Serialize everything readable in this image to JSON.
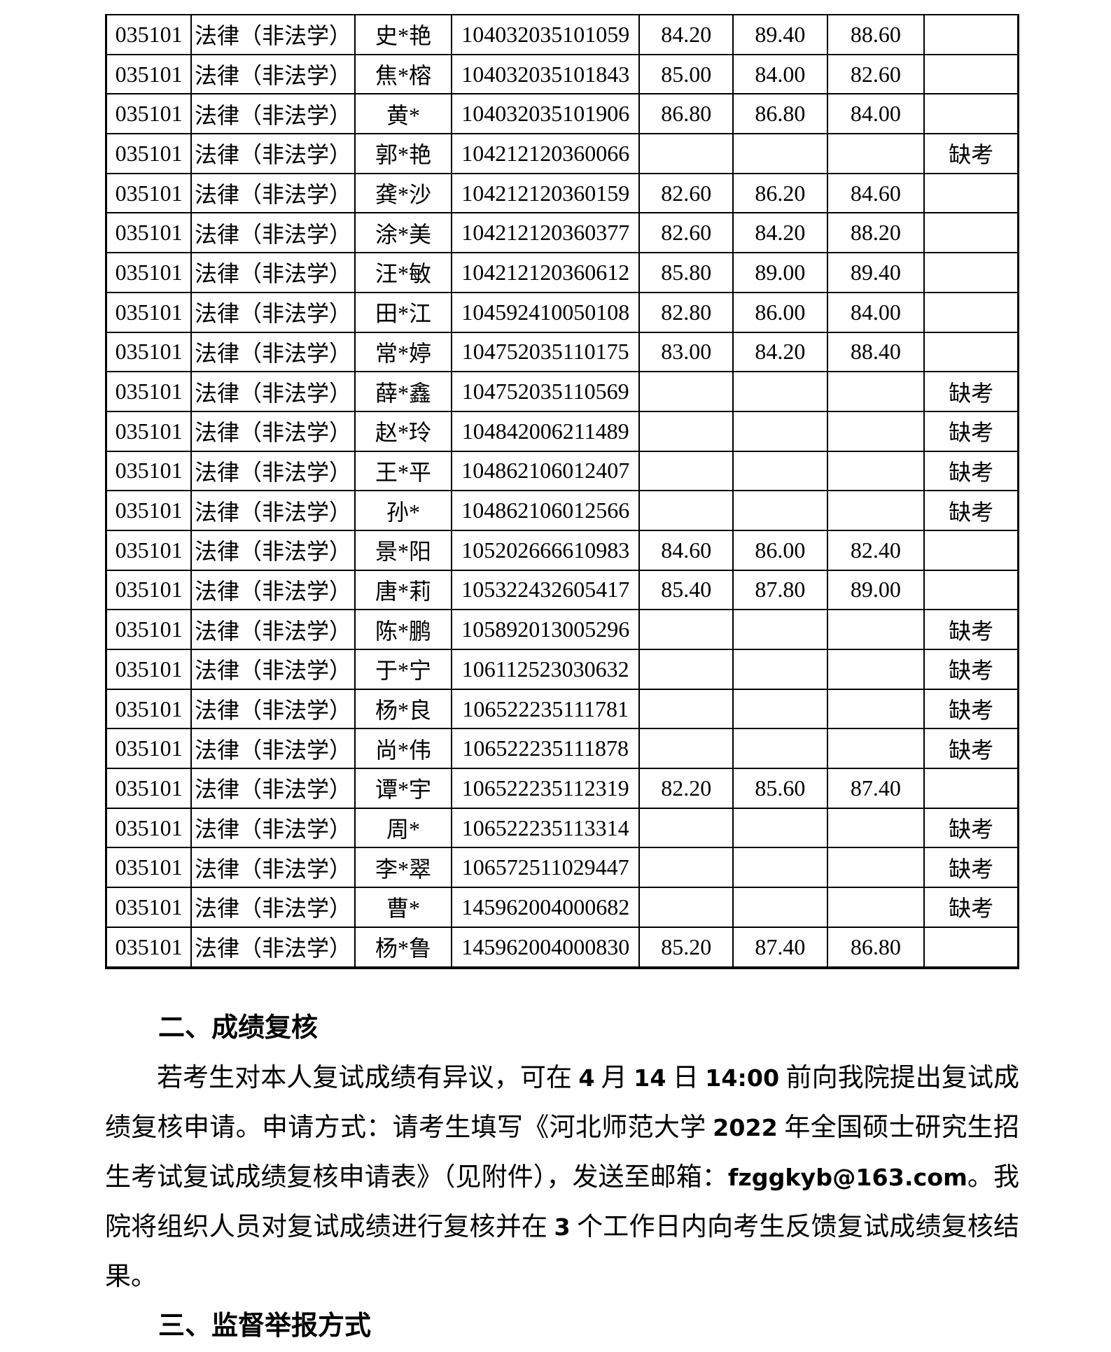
{
  "colors": {
    "page_background": "#ffffff",
    "text": "#000000",
    "table_border": "#000000"
  },
  "table": {
    "rows": [
      {
        "code": "035101",
        "major": "法律（非法学）",
        "name": "史*艳",
        "candidate_id": "104032035101059",
        "score1": "84.20",
        "score2": "89.40",
        "score3": "88.60",
        "remark": ""
      },
      {
        "code": "035101",
        "major": "法律（非法学）",
        "name": "焦*榕",
        "candidate_id": "104032035101843",
        "score1": "85.00",
        "score2": "84.00",
        "score3": "82.60",
        "remark": ""
      },
      {
        "code": "035101",
        "major": "法律（非法学）",
        "name": "黄*",
        "candidate_id": "104032035101906",
        "score1": "86.80",
        "score2": "86.80",
        "score3": "84.00",
        "remark": ""
      },
      {
        "code": "035101",
        "major": "法律（非法学）",
        "name": "郭*艳",
        "candidate_id": "104212120360066",
        "score1": "",
        "score2": "",
        "score3": "",
        "remark": "缺考"
      },
      {
        "code": "035101",
        "major": "法律（非法学）",
        "name": "龚*沙",
        "candidate_id": "104212120360159",
        "score1": "82.60",
        "score2": "86.20",
        "score3": "84.60",
        "remark": ""
      },
      {
        "code": "035101",
        "major": "法律（非法学）",
        "name": "涂*美",
        "candidate_id": "104212120360377",
        "score1": "82.60",
        "score2": "84.20",
        "score3": "88.20",
        "remark": ""
      },
      {
        "code": "035101",
        "major": "法律（非法学）",
        "name": "汪*敏",
        "candidate_id": "104212120360612",
        "score1": "85.80",
        "score2": "89.00",
        "score3": "89.40",
        "remark": ""
      },
      {
        "code": "035101",
        "major": "法律（非法学）",
        "name": "田*江",
        "candidate_id": "104592410050108",
        "score1": "82.80",
        "score2": "86.00",
        "score3": "84.00",
        "remark": ""
      },
      {
        "code": "035101",
        "major": "法律（非法学）",
        "name": "常*婷",
        "candidate_id": "104752035110175",
        "score1": "83.00",
        "score2": "84.20",
        "score3": "88.40",
        "remark": ""
      },
      {
        "code": "035101",
        "major": "法律（非法学）",
        "name": "薛*鑫",
        "candidate_id": "104752035110569",
        "score1": "",
        "score2": "",
        "score3": "",
        "remark": "缺考"
      },
      {
        "code": "035101",
        "major": "法律（非法学）",
        "name": "赵*玲",
        "candidate_id": "104842006211489",
        "score1": "",
        "score2": "",
        "score3": "",
        "remark": "缺考"
      },
      {
        "code": "035101",
        "major": "法律（非法学）",
        "name": "王*平",
        "candidate_id": "104862106012407",
        "score1": "",
        "score2": "",
        "score3": "",
        "remark": "缺考"
      },
      {
        "code": "035101",
        "major": "法律（非法学）",
        "name": "孙*",
        "candidate_id": "104862106012566",
        "score1": "",
        "score2": "",
        "score3": "",
        "remark": "缺考"
      },
      {
        "code": "035101",
        "major": "法律（非法学）",
        "name": "景*阳",
        "candidate_id": "105202666610983",
        "score1": "84.60",
        "score2": "86.00",
        "score3": "82.40",
        "remark": ""
      },
      {
        "code": "035101",
        "major": "法律（非法学）",
        "name": "唐*莉",
        "candidate_id": "105322432605417",
        "score1": "85.40",
        "score2": "87.80",
        "score3": "89.00",
        "remark": ""
      },
      {
        "code": "035101",
        "major": "法律（非法学）",
        "name": "陈*鹏",
        "candidate_id": "105892013005296",
        "score1": "",
        "score2": "",
        "score3": "",
        "remark": "缺考"
      },
      {
        "code": "035101",
        "major": "法律（非法学）",
        "name": "于*宁",
        "candidate_id": "106112523030632",
        "score1": "",
        "score2": "",
        "score3": "",
        "remark": "缺考"
      },
      {
        "code": "035101",
        "major": "法律（非法学）",
        "name": "杨*良",
        "candidate_id": "106522235111781",
        "score1": "",
        "score2": "",
        "score3": "",
        "remark": "缺考"
      },
      {
        "code": "035101",
        "major": "法律（非法学）",
        "name": "尚*伟",
        "candidate_id": "106522235111878",
        "score1": "",
        "score2": "",
        "score3": "",
        "remark": "缺考"
      },
      {
        "code": "035101",
        "major": "法律（非法学）",
        "name": "谭*宇",
        "candidate_id": "106522235112319",
        "score1": "82.20",
        "score2": "85.60",
        "score3": "87.40",
        "remark": ""
      },
      {
        "code": "035101",
        "major": "法律（非法学）",
        "name": "周*",
        "candidate_id": "106522235113314",
        "score1": "",
        "score2": "",
        "score3": "",
        "remark": "缺考"
      },
      {
        "code": "035101",
        "major": "法律（非法学）",
        "name": "李*翠",
        "candidate_id": "106572511029447",
        "score1": "",
        "score2": "",
        "score3": "",
        "remark": "缺考"
      },
      {
        "code": "035101",
        "major": "法律（非法学）",
        "name": "曹*",
        "candidate_id": "145962004000682",
        "score1": "",
        "score2": "",
        "score3": "",
        "remark": "缺考"
      },
      {
        "code": "035101",
        "major": "法律（非法学）",
        "name": "杨*鲁",
        "candidate_id": "145962004000830",
        "score1": "85.20",
        "score2": "87.40",
        "score3": "86.80",
        "remark": ""
      }
    ]
  },
  "sections": {
    "review": {
      "heading": "二、成绩复核",
      "paragraph_segments": [
        {
          "kind": "cjk",
          "text": "若考生对本人复试成绩有异议，可在 "
        },
        {
          "kind": "latin",
          "text": "4"
        },
        {
          "kind": "cjk",
          "text": " 月 "
        },
        {
          "kind": "latin",
          "text": "14"
        },
        {
          "kind": "cjk",
          "text": " 日 "
        },
        {
          "kind": "latin",
          "text": "14:00"
        },
        {
          "kind": "cjk",
          "text": " 前向我院提出复试成绩复核申请。申请方式：请考生填写《河北师范大学 "
        },
        {
          "kind": "latin",
          "text": "2022"
        },
        {
          "kind": "cjk",
          "text": " 年全国硕士研究生招生考试复试成绩复核申请表》（见附件），发送至邮箱："
        },
        {
          "kind": "latin",
          "text": "fzggkyb@163.com"
        },
        {
          "kind": "cjk",
          "text": "。我院将组织人员对复试成绩进行复核并在 "
        },
        {
          "kind": "latin",
          "text": "3"
        },
        {
          "kind": "cjk",
          "text": " 个工作日内向考生反馈复试成绩复核结果。"
        }
      ]
    },
    "report": {
      "heading": "三、监督举报方式"
    }
  }
}
